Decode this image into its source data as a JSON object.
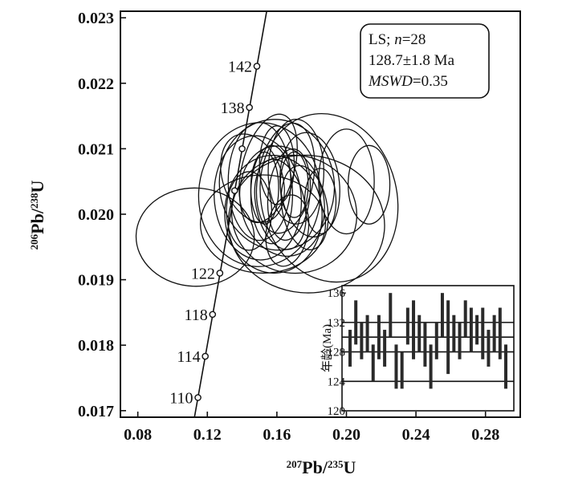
{
  "chart_data": [
    {
      "type": "scatter",
      "subtype": "concordia-diagram",
      "xlabel_parts": {
        "sup1": "207",
        "base1": "Pb/",
        "sup2": "235",
        "base2": "U"
      },
      "ylabel_parts": {
        "sup1": "206",
        "base1": "Pb/",
        "sup2": "238",
        "base2": "U"
      },
      "xlim": [
        0.07,
        0.3
      ],
      "ylim": [
        0.0169,
        0.0231
      ],
      "x_ticks": [
        {
          "value": 0.08,
          "label": "0.08"
        },
        {
          "value": 0.12,
          "label": "0.12"
        },
        {
          "value": 0.16,
          "label": "0.16"
        },
        {
          "value": 0.2,
          "label": "0.20"
        },
        {
          "value": 0.24,
          "label": "0.24"
        },
        {
          "value": 0.28,
          "label": "0.28"
        }
      ],
      "y_ticks": [
        {
          "value": 0.017,
          "label": "0.017"
        },
        {
          "value": 0.018,
          "label": "0.018"
        },
        {
          "value": 0.019,
          "label": "0.019"
        },
        {
          "value": 0.02,
          "label": "0.020"
        },
        {
          "value": 0.021,
          "label": "0.021"
        },
        {
          "value": 0.022,
          "label": "0.022"
        },
        {
          "value": 0.023,
          "label": "0.023"
        }
      ],
      "concordia": {
        "x_range": [
          0.111,
          0.158
        ],
        "age_markers": [
          {
            "label": "110",
            "x": 0.1146,
            "y": 0.0172
          },
          {
            "label": "114",
            "x": 0.1188,
            "y": 0.01783
          },
          {
            "label": "118",
            "x": 0.123,
            "y": 0.01847
          },
          {
            "label": "122",
            "x": 0.1272,
            "y": 0.0191
          },
          {
            "label": "",
            "x": 0.1357,
            "y": 0.02036
          },
          {
            "label": "",
            "x": 0.14,
            "y": 0.021
          },
          {
            "label": "138",
            "x": 0.1442,
            "y": 0.02163
          },
          {
            "label": "142",
            "x": 0.1485,
            "y": 0.02226
          }
        ]
      },
      "annotation": {
        "line1_prefix": "LS; ",
        "line1_italic": "n",
        "line1_suffix": "=28",
        "line2": "128.7±1.8 Ma",
        "line3_italic": "MSWD",
        "line3_suffix": "=0.35"
      },
      "error_ellipses": [
        {
          "cx": 0.113,
          "cy": 0.01965,
          "rx": 0.034,
          "ry": 0.00075,
          "angle": -2
        },
        {
          "cx": 0.15,
          "cy": 0.0203,
          "rx": 0.035,
          "ry": 0.0011,
          "angle": -3
        },
        {
          "cx": 0.152,
          "cy": 0.01985,
          "rx": 0.036,
          "ry": 0.00075,
          "angle": 0
        },
        {
          "cx": 0.16,
          "cy": 0.02045,
          "rx": 0.033,
          "ry": 0.001,
          "angle": 8
        },
        {
          "cx": 0.158,
          "cy": 0.02,
          "rx": 0.028,
          "ry": 0.0009,
          "angle": 2
        },
        {
          "cx": 0.163,
          "cy": 0.0202,
          "rx": 0.024,
          "ry": 0.00085,
          "angle": 12
        },
        {
          "cx": 0.17,
          "cy": 0.02,
          "rx": 0.036,
          "ry": 0.0009,
          "angle": -8
        },
        {
          "cx": 0.19,
          "cy": 0.02025,
          "rx": 0.039,
          "ry": 0.0013,
          "angle": 14
        },
        {
          "cx": 0.177,
          "cy": 0.01985,
          "rx": 0.045,
          "ry": 0.00105,
          "angle": -5
        },
        {
          "cx": 0.15,
          "cy": 0.0205,
          "rx": 0.018,
          "ry": 0.0009,
          "angle": 0
        },
        {
          "cx": 0.165,
          "cy": 0.02055,
          "rx": 0.016,
          "ry": 0.00085,
          "angle": -10
        },
        {
          "cx": 0.157,
          "cy": 0.0203,
          "rx": 0.012,
          "ry": 0.00075,
          "angle": 0
        },
        {
          "cx": 0.162,
          "cy": 0.02015,
          "rx": 0.014,
          "ry": 0.0007,
          "angle": 12
        },
        {
          "cx": 0.167,
          "cy": 0.0203,
          "rx": 0.012,
          "ry": 0.0007,
          "angle": -6
        },
        {
          "cx": 0.146,
          "cy": 0.02055,
          "rx": 0.017,
          "ry": 0.0007,
          "angle": 20
        },
        {
          "cx": 0.171,
          "cy": 0.02065,
          "rx": 0.016,
          "ry": 0.0008,
          "angle": 0
        },
        {
          "cx": 0.155,
          "cy": 0.0207,
          "rx": 0.015,
          "ry": 0.00085,
          "angle": -15
        },
        {
          "cx": 0.16,
          "cy": 0.02075,
          "rx": 0.01,
          "ry": 0.0006,
          "angle": 0
        },
        {
          "cx": 0.176,
          "cy": 0.0201,
          "rx": 0.013,
          "ry": 0.00065,
          "angle": 10
        },
        {
          "cx": 0.144,
          "cy": 0.02005,
          "rx": 0.013,
          "ry": 0.0006,
          "angle": 0
        },
        {
          "cx": 0.166,
          "cy": 0.01975,
          "rx": 0.012,
          "ry": 0.00055,
          "angle": -10
        },
        {
          "cx": 0.179,
          "cy": 0.02045,
          "rx": 0.017,
          "ry": 0.0008,
          "angle": 6
        },
        {
          "cx": 0.2,
          "cy": 0.0205,
          "rx": 0.016,
          "ry": 0.0008,
          "angle": 0
        },
        {
          "cx": 0.213,
          "cy": 0.02045,
          "rx": 0.012,
          "ry": 0.0006,
          "angle": 0
        },
        {
          "cx": 0.185,
          "cy": 0.0202,
          "rx": 0.009,
          "ry": 0.0005,
          "angle": 0
        },
        {
          "cx": 0.153,
          "cy": 0.0204,
          "rx": 0.008,
          "ry": 0.00055,
          "angle": 0
        },
        {
          "cx": 0.17,
          "cy": 0.02045,
          "rx": 0.008,
          "ry": 0.0005,
          "angle": 0
        },
        {
          "cx": 0.149,
          "cy": 0.02025,
          "rx": 0.025,
          "ry": 0.00095,
          "angle": 5
        }
      ]
    },
    {
      "type": "bar",
      "subtype": "age-error-bars",
      "ylabel": "年龄(Ma)",
      "ylim": [
        120,
        137
      ],
      "y_ticks": [
        120,
        124,
        128,
        132,
        136
      ],
      "reference_lines": [
        124,
        128,
        130,
        132
      ],
      "analyses": [
        {
          "low": 126,
          "high": 131
        },
        {
          "low": 129,
          "high": 135
        },
        {
          "low": 127,
          "high": 132
        },
        {
          "low": 128,
          "high": 133
        },
        {
          "low": 124,
          "high": 129
        },
        {
          "low": 127,
          "high": 133
        },
        {
          "low": 126,
          "high": 131
        },
        {
          "low": 130,
          "high": 136
        },
        {
          "low": 123,
          "high": 129
        },
        {
          "low": 123,
          "high": 128
        },
        {
          "low": 129,
          "high": 134
        },
        {
          "low": 127,
          "high": 135
        },
        {
          "low": 128,
          "high": 133
        },
        {
          "low": 126,
          "high": 132
        },
        {
          "low": 123,
          "high": 129
        },
        {
          "low": 127,
          "high": 132
        },
        {
          "low": 130,
          "high": 136
        },
        {
          "low": 125,
          "high": 135
        },
        {
          "low": 128,
          "high": 133
        },
        {
          "low": 127,
          "high": 132
        },
        {
          "low": 130,
          "high": 135
        },
        {
          "low": 128,
          "high": 134
        },
        {
          "low": 129,
          "high": 133
        },
        {
          "low": 127,
          "high": 134
        },
        {
          "low": 126,
          "high": 131
        },
        {
          "low": 128,
          "high": 133
        },
        {
          "low": 127,
          "high": 134
        },
        {
          "low": 123,
          "high": 129
        }
      ]
    }
  ]
}
